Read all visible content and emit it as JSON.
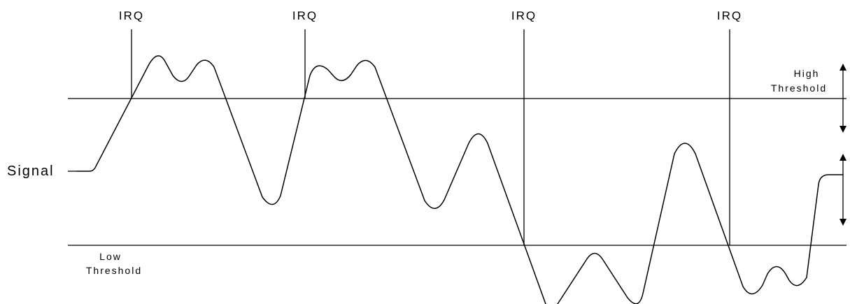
{
  "irq_markers": [
    {
      "label": "IRQ"
    },
    {
      "label": "IRQ"
    },
    {
      "label": "IRQ"
    },
    {
      "label": "IRQ"
    }
  ],
  "signal": {
    "label": "Signal"
  },
  "high_threshold": {
    "line1": "High",
    "line2": "Threshold"
  },
  "low_threshold": {
    "line1": "Low",
    "line2": "Threshold"
  },
  "colors": {
    "stroke": "#000000",
    "background": "#ffffff"
  }
}
